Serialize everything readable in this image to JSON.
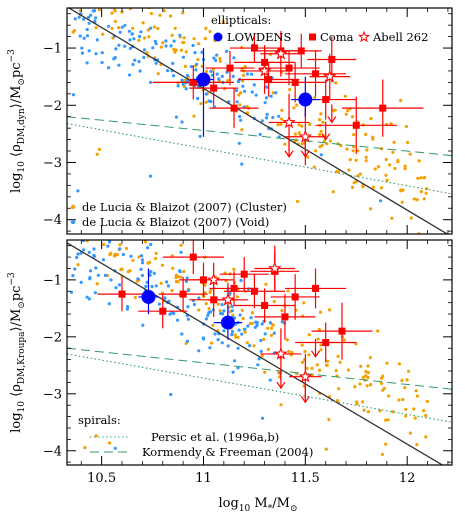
{
  "chart_data": [
    {
      "panel": "top",
      "type": "scatter",
      "ylabel": "log10 <ρDM,dyn>/M⊙pc^-3",
      "ylabel_parts": {
        "lead": "log",
        "lead_sub": "10",
        "rho": "⟨ρ",
        "rho_sub": "DM,dyn",
        "tail": "⟩/M",
        "sun": "⊙",
        "unit": "pc",
        "exp": "−3"
      },
      "xlim": [
        10.33,
        12.22
      ],
      "ylim": [
        -4.25,
        -0.3
      ],
      "yticks": [
        -4,
        -3,
        -2,
        -1
      ],
      "ytick_labels": [
        "−4",
        "−3",
        "−2",
        "−1"
      ],
      "legend_title": "ellipticals:",
      "legend_items": [
        {
          "label": "LOWDENS",
          "marker": "circle",
          "color": "#0000ff"
        },
        {
          "label": "Coma",
          "marker": "square",
          "color": "#ff0000"
        },
        {
          "label": "Abell 262",
          "marker": "star",
          "color": "#ff0000"
        }
      ],
      "legend_sims": [
        {
          "label": "de Lucia & Blaizot (2007) (Cluster)",
          "color": "#f4a000"
        },
        {
          "label": "de Lucia & Blaizot (2007) (Void)",
          "color": "#3399ff"
        }
      ],
      "lines": [
        {
          "style": "solid",
          "color": "#333333",
          "x": [
            10.33,
            12.22
          ],
          "y": [
            -0.28,
            -4.3
          ]
        },
        {
          "style": "dashed",
          "color": "#339966",
          "x": [
            10.33,
            12.22
          ],
          "y": [
            -2.2,
            -2.88
          ]
        },
        {
          "style": "dotted",
          "color": "#339966",
          "x": [
            10.33,
            12.22
          ],
          "y": [
            -2.32,
            -3.55
          ]
        }
      ],
      "lowdens": [
        {
          "x": 11.0,
          "y": -1.55,
          "xerr": 0.05,
          "yerr": [
            0.55,
            1.0
          ]
        },
        {
          "x": 11.5,
          "y": -1.9,
          "xerr": 0.07,
          "yerr": [
            0.4,
            0.3
          ]
        }
      ],
      "coma": [
        {
          "x": 10.95,
          "y": -1.6,
          "xerr": 0.2,
          "yerr": 0.3
        },
        {
          "x": 11.05,
          "y": -1.7,
          "xerr": 0.12,
          "yerr": 0.3
        },
        {
          "x": 11.13,
          "y": -1.35,
          "xerr": 0.12,
          "yerr": 0.3
        },
        {
          "x": 11.15,
          "y": -2.05,
          "xerr": 0.12,
          "yerr": 0.35
        },
        {
          "x": 11.25,
          "y": -1.0,
          "xerr": 0.12,
          "yerr": 0.25
        },
        {
          "x": 11.3,
          "y": -1.25,
          "xerr": 0.15,
          "yerr": 0.3
        },
        {
          "x": 11.32,
          "y": -1.55,
          "xerr": 0.15,
          "yerr": 0.3
        },
        {
          "x": 11.38,
          "y": -1.05,
          "xerr": 0.12,
          "yerr": 0.25
        },
        {
          "x": 11.42,
          "y": -1.35,
          "xerr": 0.15,
          "yerr": 0.3
        },
        {
          "x": 11.45,
          "y": -1.6,
          "xerr": 0.15,
          "yerr": 0.35
        },
        {
          "x": 11.48,
          "y": -1.05,
          "xerr": 0.1,
          "yerr": 0.3
        },
        {
          "x": 11.55,
          "y": -1.45,
          "xerr": 0.15,
          "yerr": 0.4
        },
        {
          "x": 11.6,
          "y": -1.9,
          "xerr": 0.15,
          "yerr": 0.35
        },
        {
          "x": 11.63,
          "y": -1.2,
          "xerr": 0.12,
          "yerr": 0.4
        },
        {
          "x": 11.75,
          "y": -2.35,
          "xerr": 0.2,
          "yerr": 0.5
        },
        {
          "x": 11.88,
          "y": -2.05,
          "xerr": 0.2,
          "yerr": 0.5
        }
      ],
      "coma_uplims": [
        {
          "x": 11.63,
          "y": -2.3
        }
      ],
      "abell262": [
        {
          "x": 11.3,
          "y": -1.4,
          "xerr": 0.12,
          "yerr": 0.4
        },
        {
          "x": 11.38,
          "y": -1.1,
          "xerr": 0.1,
          "yerr": 0.4
        },
        {
          "x": 11.42,
          "y": -2.3,
          "xerr": 0.1,
          "yerr": 0.5
        },
        {
          "x": 11.5,
          "y": -2.55,
          "xerr": 0.1,
          "yerr": 0.5
        },
        {
          "x": 11.62,
          "y": -1.5,
          "xerr": 0.1,
          "yerr": 0.4
        }
      ],
      "abell262_uplims": [
        {
          "x": 11.42,
          "y": -2.9
        },
        {
          "x": 11.5,
          "y": -2.9
        },
        {
          "x": 11.6,
          "y": -2.6
        }
      ]
    },
    {
      "panel": "bottom",
      "type": "scatter",
      "ylabel": "log10 <ρDM,Kroupa>/M⊙pc^-3",
      "ylabel_parts": {
        "lead": "log",
        "lead_sub": "10",
        "rho": "⟨ρ",
        "rho_sub": "DM,Kroupa",
        "tail": "⟩/M",
        "sun": "⊙",
        "unit": "pc",
        "exp": "−3"
      },
      "xlabel": "log10 M*/M⊙",
      "xlabel_parts": {
        "lead": "log",
        "lead_sub": "10",
        "m": " M",
        "m_sub": "*",
        "slash": "/M",
        "sun": "⊙"
      },
      "xlim": [
        10.33,
        12.22
      ],
      "ylim": [
        -4.25,
        -0.3
      ],
      "xticks": [
        10.5,
        11,
        11.5,
        12
      ],
      "xtick_labels": [
        "10.5",
        "11",
        "11.5",
        "12"
      ],
      "yticks": [
        -4,
        -3,
        -2,
        -1
      ],
      "ytick_labels": [
        "−4",
        "−3",
        "−2",
        "−1"
      ],
      "legend_title": "spirals:",
      "legend_items": [
        {
          "label": "Persic et al. (1996a,b)",
          "style": "dotted",
          "color": "#339966"
        },
        {
          "label": "Kormendy & Freeman (2004)",
          "style": "dashed",
          "color": "#339966"
        }
      ],
      "lines": [
        {
          "style": "solid",
          "color": "#333333",
          "x": [
            10.33,
            12.22
          ],
          "y": [
            -0.35,
            -4.35
          ]
        },
        {
          "style": "dashed",
          "color": "#339966",
          "x": [
            10.33,
            12.22
          ],
          "y": [
            -2.2,
            -2.92
          ]
        },
        {
          "style": "dotted",
          "color": "#339966",
          "x": [
            10.33,
            12.22
          ],
          "y": [
            -2.3,
            -3.5
          ]
        }
      ],
      "lowdens": [
        {
          "x": 10.73,
          "y": -1.3,
          "xerr": 0.05,
          "yerr": [
            0.5,
            0.3
          ]
        },
        {
          "x": 11.12,
          "y": -1.75,
          "xerr": 0.07,
          "yerr": [
            0.3,
            0.3
          ]
        }
      ],
      "coma": [
        {
          "x": 10.6,
          "y": -1.25,
          "xerr": 0.12,
          "yerr": 0.3
        },
        {
          "x": 10.8,
          "y": -1.55,
          "xerr": 0.12,
          "yerr": 0.3
        },
        {
          "x": 10.9,
          "y": -1.25,
          "xerr": 0.12,
          "yerr": 0.3
        },
        {
          "x": 10.95,
          "y": -0.6,
          "xerr": 0.15,
          "yerr": 0.3
        },
        {
          "x": 11.0,
          "y": -1.0,
          "xerr": 0.12,
          "yerr": 0.3
        },
        {
          "x": 11.05,
          "y": -1.35,
          "xerr": 0.12,
          "yerr": 0.3
        },
        {
          "x": 11.15,
          "y": -1.15,
          "xerr": 0.12,
          "yerr": 0.3
        },
        {
          "x": 11.2,
          "y": -0.9,
          "xerr": 0.12,
          "yerr": 0.3
        },
        {
          "x": 11.25,
          "y": -1.2,
          "xerr": 0.15,
          "yerr": 0.3
        },
        {
          "x": 11.3,
          "y": -1.45,
          "xerr": 0.15,
          "yerr": 0.3
        },
        {
          "x": 11.35,
          "y": -0.85,
          "xerr": 0.12,
          "yerr": 0.35
        },
        {
          "x": 11.4,
          "y": -1.65,
          "xerr": 0.15,
          "yerr": 0.4
        },
        {
          "x": 11.45,
          "y": -1.3,
          "xerr": 0.12,
          "yerr": 0.4
        },
        {
          "x": 11.55,
          "y": -1.15,
          "xerr": 0.15,
          "yerr": 0.35
        },
        {
          "x": 11.6,
          "y": -2.1,
          "xerr": 0.15,
          "yerr": 0.35
        },
        {
          "x": 11.68,
          "y": -1.9,
          "xerr": 0.15,
          "yerr": 0.5
        }
      ],
      "coma_uplims": [
        {
          "x": 11.55,
          "y": -2.35
        }
      ],
      "abell262": [
        {
          "x": 11.05,
          "y": -1.0,
          "xerr": 0.1,
          "yerr": 0.3
        },
        {
          "x": 11.12,
          "y": -1.35,
          "xerr": 0.1,
          "yerr": 0.3
        },
        {
          "x": 11.35,
          "y": -0.8,
          "xerr": 0.1,
          "yerr": 0.4
        },
        {
          "x": 11.38,
          "y": -2.3,
          "xerr": 0.1,
          "yerr": 0.45
        },
        {
          "x": 11.5,
          "y": -2.7,
          "xerr": 0.08,
          "yerr": 0.4
        }
      ],
      "abell262_uplims": [
        {
          "x": 11.38,
          "y": -2.9
        },
        {
          "x": 11.5,
          "y": -3.15
        }
      ]
    }
  ]
}
